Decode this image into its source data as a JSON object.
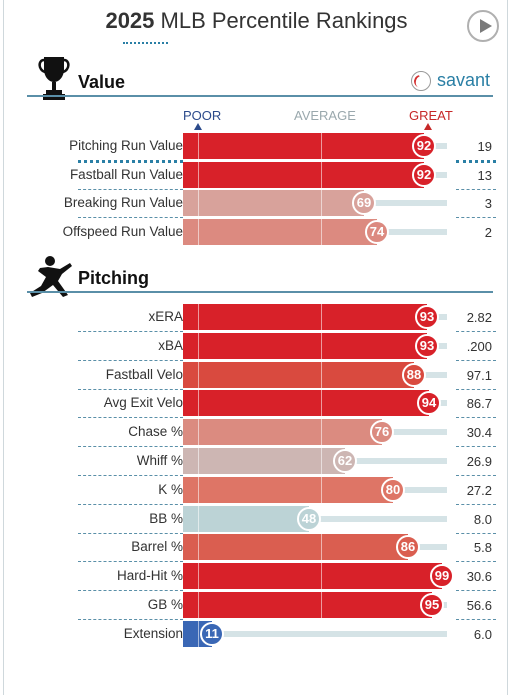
{
  "header": {
    "year": "2025",
    "title": "MLB Percentile Rankings"
  },
  "branding": {
    "savant_label": "savant"
  },
  "scale": {
    "poor_label": "POOR",
    "average_label": "AVERAGE",
    "great_label": "GREAT"
  },
  "sections": [
    {
      "title": "Value",
      "icon": "trophy-icon",
      "rows": [
        {
          "label": "Pitching Run Value",
          "percentile": 92,
          "value": "19",
          "color": "#d82129",
          "rank": "92"
        },
        {
          "label": "Fastball Run Value",
          "percentile": 92,
          "value": "13",
          "color": "#d82129",
          "rank": "92"
        },
        {
          "label": "Breaking Run Value",
          "percentile": 69,
          "value": "3",
          "color": "#d8a29b",
          "rank": "69"
        },
        {
          "label": "Offspeed Run Value",
          "percentile": 74,
          "value": "2",
          "color": "#dc8a80",
          "rank": "74"
        }
      ]
    },
    {
      "title": "Pitching",
      "icon": "pitcher-icon",
      "rows": [
        {
          "label": "xERA",
          "percentile": 93,
          "value": "2.82",
          "color": "#d82129",
          "rank": "93"
        },
        {
          "label": "xBA",
          "percentile": 93,
          "value": ".200",
          "color": "#d82129",
          "rank": "93"
        },
        {
          "label": "Fastball Velo",
          "percentile": 88,
          "value": "97.1",
          "color": "#d94a3f",
          "rank": "88"
        },
        {
          "label": "Avg Exit Velo",
          "percentile": 94,
          "value": "86.7",
          "color": "#d82129",
          "rank": "94"
        },
        {
          "label": "Chase %",
          "percentile": 76,
          "value": "30.4",
          "color": "#db8b80",
          "rank": "76"
        },
        {
          "label": "Whiff %",
          "percentile": 62,
          "value": "26.9",
          "color": "#cdb6b3",
          "rank": "62"
        },
        {
          "label": "K %",
          "percentile": 80,
          "value": "27.2",
          "color": "#de7566",
          "rank": "80"
        },
        {
          "label": "BB %",
          "percentile": 48,
          "value": "8.0",
          "color": "#bcd3d6",
          "rank": "48"
        },
        {
          "label": "Barrel %",
          "percentile": 86,
          "value": "5.8",
          "color": "#da5e50",
          "rank": "86"
        },
        {
          "label": "Hard-Hit %",
          "percentile": 99,
          "value": "30.6",
          "color": "#d82129",
          "rank": "99"
        },
        {
          "label": "GB %",
          "percentile": 95,
          "value": "56.6",
          "color": "#d82129",
          "rank": "95"
        },
        {
          "label": "Extension",
          "percentile": 11,
          "value": "6.0",
          "color": "#3a67b5",
          "rank": "11"
        }
      ]
    }
  ]
}
